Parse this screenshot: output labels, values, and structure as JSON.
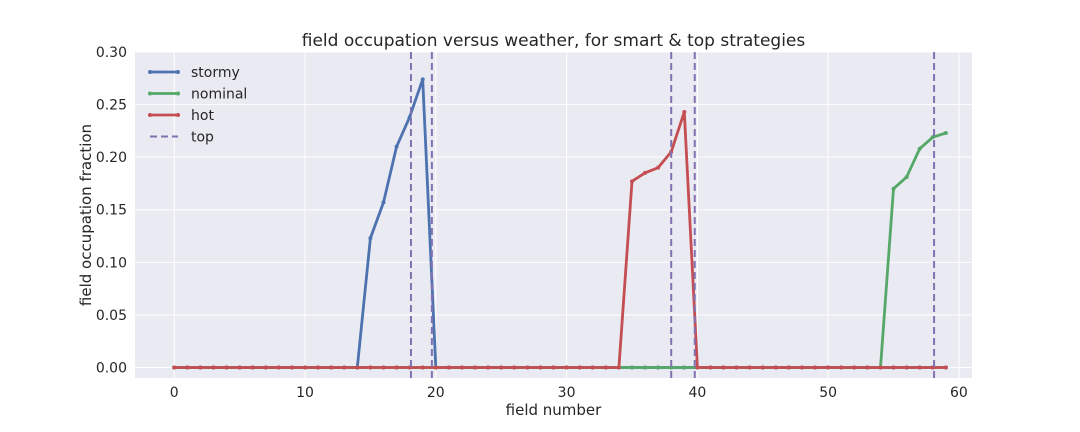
{
  "chart_data": {
    "type": "line",
    "title": "field occupation versus weather, for smart & top strategies",
    "xlabel": "field number",
    "ylabel": "field occupation fraction",
    "xlim": [
      -3,
      61
    ],
    "ylim": [
      -0.01,
      0.3
    ],
    "xticks": [
      0,
      10,
      20,
      30,
      40,
      50,
      60
    ],
    "xtick_labels": [
      "0",
      "10",
      "20",
      "30",
      "40",
      "50",
      "60"
    ],
    "yticks": [
      0.0,
      0.05,
      0.1,
      0.15,
      0.2,
      0.25,
      0.3
    ],
    "ytick_labels": [
      "0.00",
      "0.05",
      "0.10",
      "0.15",
      "0.20",
      "0.25",
      "0.30"
    ],
    "grid": true,
    "background": "#eaeaf2",
    "legend_position": "top-left",
    "x": [
      0,
      1,
      2,
      3,
      4,
      5,
      6,
      7,
      8,
      9,
      10,
      11,
      12,
      13,
      14,
      15,
      16,
      17,
      18,
      19,
      20,
      21,
      22,
      23,
      24,
      25,
      26,
      27,
      28,
      29,
      30,
      31,
      32,
      33,
      34,
      35,
      36,
      37,
      38,
      39,
      40,
      41,
      42,
      43,
      44,
      45,
      46,
      47,
      48,
      49,
      50,
      51,
      52,
      53,
      54,
      55,
      56,
      57,
      58,
      59
    ],
    "series": [
      {
        "name": "stormy",
        "color": "#4c72b0",
        "values": [
          0,
          0,
          0,
          0,
          0,
          0,
          0,
          0,
          0,
          0,
          0,
          0,
          0,
          0,
          0,
          0.123,
          0.157,
          0.21,
          0.238,
          0.274,
          0,
          0,
          0,
          0,
          0,
          0,
          0,
          0,
          0,
          0,
          0,
          0,
          0,
          0,
          0,
          0,
          0,
          0,
          0,
          0,
          0,
          0,
          0,
          0,
          0,
          0,
          0,
          0,
          0,
          0,
          0,
          0,
          0,
          0,
          0,
          0,
          0,
          0,
          0,
          0
        ]
      },
      {
        "name": "nominal",
        "color": "#55a868",
        "values": [
          0,
          0,
          0,
          0,
          0,
          0,
          0,
          0,
          0,
          0,
          0,
          0,
          0,
          0,
          0,
          0,
          0,
          0,
          0,
          0,
          0,
          0,
          0,
          0,
          0,
          0,
          0,
          0,
          0,
          0,
          0,
          0,
          0,
          0,
          0,
          0,
          0,
          0,
          0,
          0,
          0,
          0,
          0,
          0,
          0,
          0,
          0,
          0,
          0,
          0,
          0,
          0,
          0,
          0,
          0,
          0.17,
          0.181,
          0.208,
          0.219,
          0.223
        ]
      },
      {
        "name": "hot",
        "color": "#c44e52",
        "values": [
          0,
          0,
          0,
          0,
          0,
          0,
          0,
          0,
          0,
          0,
          0,
          0,
          0,
          0,
          0,
          0,
          0,
          0,
          0,
          0,
          0,
          0,
          0,
          0,
          0,
          0,
          0,
          0,
          0,
          0,
          0,
          0,
          0,
          0,
          0,
          0.177,
          0.185,
          0.19,
          0.205,
          0.243,
          0,
          0,
          0,
          0,
          0,
          0,
          0,
          0,
          0,
          0,
          0,
          0,
          0,
          0,
          0,
          0,
          0,
          0,
          0,
          0
        ]
      }
    ],
    "vlines": {
      "name": "top",
      "color": "#8172b2",
      "x": [
        18.1,
        19.7,
        38.0,
        39.8,
        58.1
      ]
    }
  }
}
